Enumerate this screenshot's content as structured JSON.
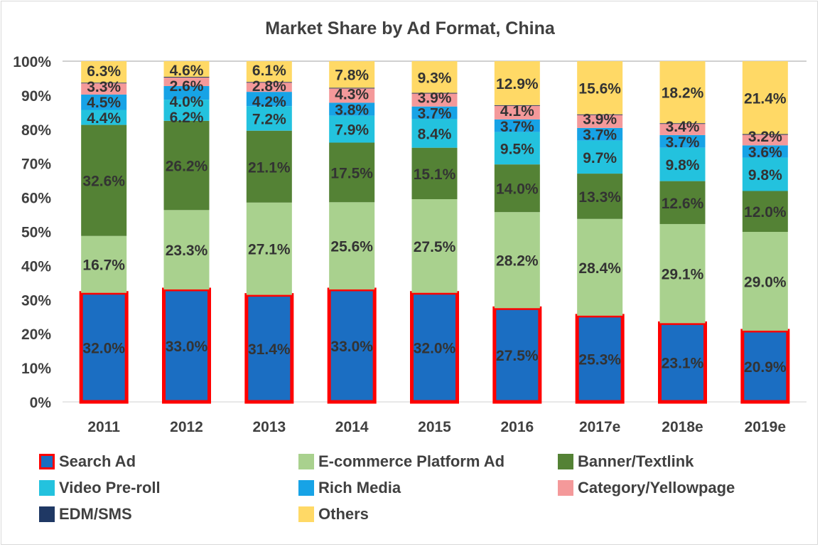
{
  "chart_data": {
    "type": "bar",
    "stacked": true,
    "title": "Market Share by Ad Format, China",
    "xlabel": "",
    "ylabel": "",
    "ylim": [
      0,
      100
    ],
    "yticks": [
      "0%",
      "10%",
      "20%",
      "30%",
      "40%",
      "50%",
      "60%",
      "70%",
      "80%",
      "90%",
      "100%"
    ],
    "grid": false,
    "legend_position": "bottom",
    "categories": [
      "2011",
      "2012",
      "2013",
      "2014",
      "2015",
      "2016",
      "2017e",
      "2018e",
      "2019e"
    ],
    "series": [
      {
        "name": "Search Ad",
        "color": "#1B6EC2",
        "border": "#FF0000",
        "values": [
          32.0,
          33.0,
          31.4,
          33.0,
          32.0,
          27.5,
          25.3,
          23.1,
          20.9
        ],
        "labels": [
          "32.0%",
          "33.0%",
          "31.4%",
          "33.0%",
          "32.0%",
          "27.5%",
          "25.3%",
          "23.1%",
          "20.9%"
        ]
      },
      {
        "name": "E-commerce Platform Ad",
        "color": "#A9D18E",
        "values": [
          16.7,
          23.3,
          27.1,
          25.6,
          27.5,
          28.2,
          28.4,
          29.1,
          29.0
        ],
        "labels": [
          "16.7%",
          "23.3%",
          "27.1%",
          "25.6%",
          "27.5%",
          "28.2%",
          "28.4%",
          "29.1%",
          "29.0%"
        ]
      },
      {
        "name": "Banner/Textlink",
        "color": "#548235",
        "values": [
          32.6,
          26.2,
          21.1,
          17.5,
          15.1,
          14.0,
          13.3,
          12.6,
          12.0
        ],
        "labels": [
          "32.6%",
          "26.2%",
          "21.1%",
          "17.5%",
          "15.1%",
          "14.0%",
          "13.3%",
          "12.6%",
          "12.0%"
        ]
      },
      {
        "name": "Video Pre-roll",
        "color": "#23C2DE",
        "values": [
          4.4,
          6.2,
          7.2,
          7.9,
          8.4,
          9.5,
          9.7,
          9.8,
          9.8
        ],
        "labels": [
          "4.4%",
          "6.2%",
          "7.2%",
          "7.9%",
          "8.4%",
          "9.5%",
          "9.7%",
          "9.8%",
          "9.8%"
        ]
      },
      {
        "name": "Rich Media",
        "color": "#17A3E6",
        "values": [
          4.5,
          4.0,
          4.2,
          3.8,
          3.7,
          3.7,
          3.7,
          3.7,
          3.6
        ],
        "labels": [
          "4.5%",
          "4.0%",
          "4.2%",
          "3.8%",
          "3.7%",
          "3.7%",
          "3.7%",
          "3.7%",
          "3.6%"
        ]
      },
      {
        "name": "Category/Yellowpage",
        "color": "#F4999A",
        "values": [
          3.3,
          2.6,
          2.8,
          4.3,
          3.9,
          4.1,
          3.9,
          3.4,
          3.2
        ],
        "labels": [
          "3.3%",
          "2.6%",
          "2.8%",
          "4.3%",
          "3.9%",
          "4.1%",
          "3.9%",
          "3.4%",
          "3.2%"
        ]
      },
      {
        "name": "EDM/SMS",
        "color": "#1F3864",
        "values": [
          0.2,
          0.1,
          0.1,
          0.1,
          0.1,
          0.1,
          0.1,
          0.1,
          0.1
        ]
      },
      {
        "name": "Others",
        "color": "#FFD966",
        "values": [
          6.3,
          4.6,
          6.1,
          7.8,
          9.3,
          12.9,
          15.6,
          18.2,
          21.4
        ],
        "labels": [
          "6.3%",
          "4.6%",
          "6.1%",
          "7.8%",
          "9.3%",
          "12.9%",
          "15.6%",
          "18.2%",
          "21.4%"
        ]
      }
    ]
  }
}
